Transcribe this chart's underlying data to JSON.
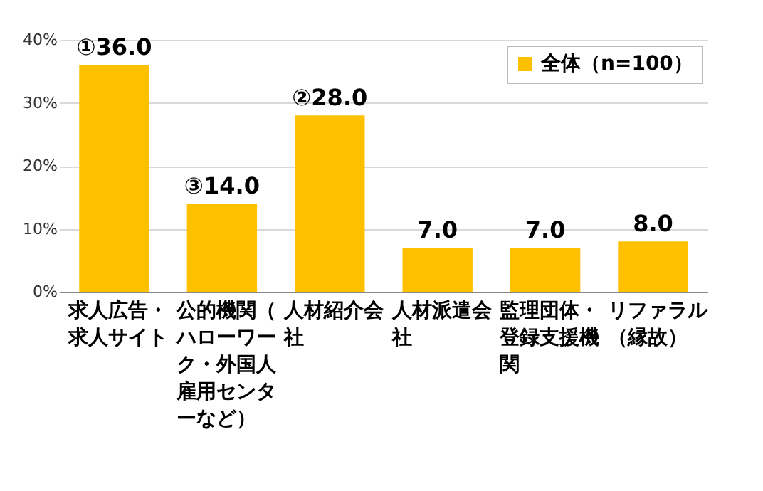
{
  "chart_data": {
    "type": "bar",
    "categories": [
      "求人広告・求人サイト",
      "公的機関（ハローワーク・外国人雇用センターなど）",
      "人材紹介会社",
      "人材派遣会社",
      "監理団体・登録支援機関",
      "リファラル（縁故）"
    ],
    "series": [
      {
        "name": "全体（n=100）",
        "color": "#ffc000",
        "values": [
          36.0,
          14.0,
          28.0,
          7.0,
          7.0,
          8.0
        ]
      }
    ],
    "value_labels": [
      "①36.0",
      "③14.0",
      "②28.0",
      "7.0",
      "7.0",
      "8.0"
    ],
    "ylim": [
      0,
      40
    ],
    "yticks": [
      {
        "value": 0,
        "label": "0%"
      },
      {
        "value": 10,
        "label": "10%"
      },
      {
        "value": 20,
        "label": "20%"
      },
      {
        "value": 30,
        "label": "30%"
      },
      {
        "value": 40,
        "label": "40%"
      }
    ],
    "grid": "y",
    "legend": "top right"
  }
}
